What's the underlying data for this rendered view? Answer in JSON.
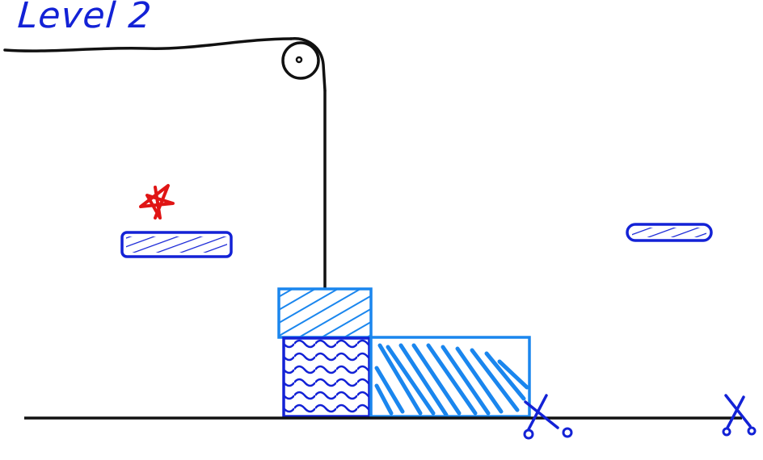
{
  "level": {
    "title": "Level 2"
  },
  "colors": {
    "ink": "#111111",
    "dark_blue": "#1322d6",
    "light_blue": "#1a86ee",
    "star_red": "#e01515"
  },
  "icons": {
    "star": "star-icon",
    "scissors": "scissors-icon",
    "pulley": "pulley-icon"
  }
}
